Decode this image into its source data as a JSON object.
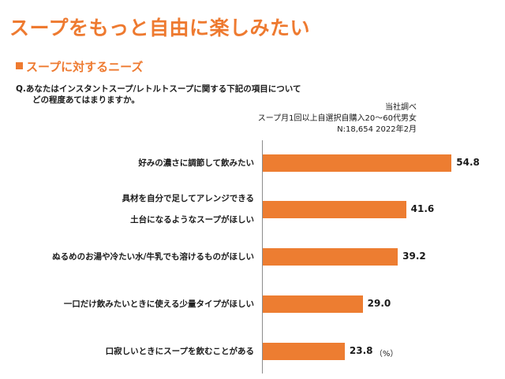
{
  "page": {
    "title": "スープをもっと自由に楽しみたい",
    "subtitle": "スープに対するニーズ",
    "question_line1": "Q.あなたはインスタントスープ/レトルトスープに関する下記の項目について",
    "question_line2": "どの程度あてはまりますか。",
    "source_line1": "当社調べ",
    "source_line2": "スープ月1回以上自選択自購入20～60代男女",
    "source_line3": "N:18,654 2022年2月"
  },
  "chart_data": {
    "type": "bar",
    "orientation": "horizontal",
    "categories": [
      [
        "好みの濃さに調節して飲みたい"
      ],
      [
        "具材を自分で足してアレンジできる",
        "土台になるようなスープがほしい"
      ],
      [
        "ぬるめのお湯や冷たい水/牛乳でも溶けるものがほしい"
      ],
      [
        "一口だけ飲みたいときに使える少量タイプがほしい"
      ],
      [
        "口寂しいときにスープを飲むことがある"
      ]
    ],
    "values": [
      54.8,
      41.6,
      39.2,
      29.0,
      23.8
    ],
    "value_labels": [
      "54.8",
      "41.6",
      "39.2",
      "29.0",
      "23.8"
    ],
    "unit": "（%）",
    "bar_color": "#ed7d31",
    "xlim": [
      0,
      60
    ]
  }
}
